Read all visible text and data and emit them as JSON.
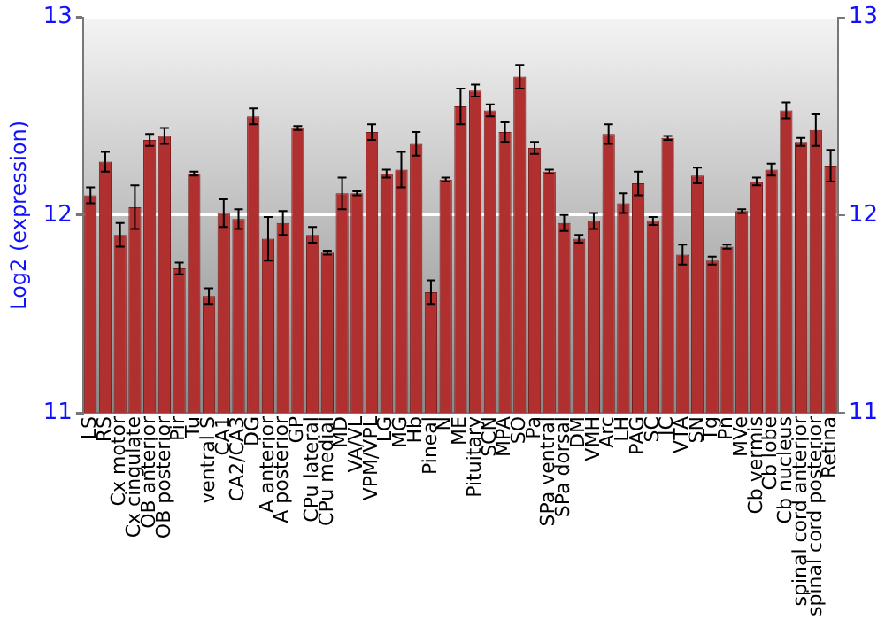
{
  "chart_data": {
    "type": "bar",
    "ylabel": "Log2 (expression)",
    "categories": [
      "LS",
      "RS",
      "Cx motor",
      "Cx cingulate",
      "OB anterior",
      "OB posterior",
      "Pir",
      "Tu",
      "ventral S",
      "CA1",
      "CA2/CA3",
      "DG",
      "A anterior",
      "A posterior",
      "GP",
      "CPu lateral",
      "CPu medial",
      "MD",
      "VA/VL",
      "VPM/VPL",
      "LG",
      "MG",
      "Hb",
      "Pineal",
      "N",
      "ME",
      "Pituitary",
      "SCN",
      "MPA",
      "SO",
      "Pa",
      "SPa ventral",
      "SPa dorsal",
      "DM",
      "VMH",
      "Arc",
      "LH",
      "PAG",
      "SC",
      "IC",
      "VTA",
      "SN",
      "Tg",
      "Pn",
      "MVe",
      "Cb vermis",
      "Cb lobe",
      "Cb nucleus",
      "spinal cord anterior",
      "spinal cord posterior",
      "Retina"
    ],
    "values": [
      12.1,
      12.27,
      11.9,
      12.04,
      12.38,
      12.4,
      11.73,
      12.21,
      11.59,
      12.01,
      11.98,
      12.5,
      11.88,
      11.96,
      12.44,
      11.9,
      11.81,
      12.11,
      12.11,
      12.42,
      12.21,
      12.23,
      12.36,
      11.61,
      12.18,
      12.55,
      12.63,
      12.53,
      12.42,
      12.7,
      12.34,
      12.22,
      11.96,
      11.88,
      11.97,
      12.41,
      12.06,
      12.16,
      11.97,
      12.39,
      11.8,
      12.2,
      11.77,
      11.84,
      12.02,
      12.17,
      12.23,
      12.53,
      12.37,
      12.43,
      12.25
    ],
    "errors": [
      0.04,
      0.05,
      0.06,
      0.11,
      0.03,
      0.04,
      0.03,
      0.01,
      0.04,
      0.07,
      0.05,
      0.04,
      0.11,
      0.06,
      0.01,
      0.04,
      0.01,
      0.08,
      0.01,
      0.04,
      0.02,
      0.09,
      0.06,
      0.06,
      0.01,
      0.09,
      0.03,
      0.03,
      0.05,
      0.06,
      0.03,
      0.01,
      0.04,
      0.02,
      0.04,
      0.05,
      0.05,
      0.06,
      0.02,
      0.01,
      0.05,
      0.04,
      0.02,
      0.01,
      0.01,
      0.02,
      0.03,
      0.04,
      0.02,
      0.08,
      0.08
    ],
    "color": "#b03030",
    "ylim": [
      11,
      13
    ],
    "yticks": [
      11,
      12,
      13
    ],
    "y2lim": [
      11,
      13
    ],
    "y2ticks": [
      11,
      12,
      13
    ],
    "grid": "y",
    "legend": false
  }
}
